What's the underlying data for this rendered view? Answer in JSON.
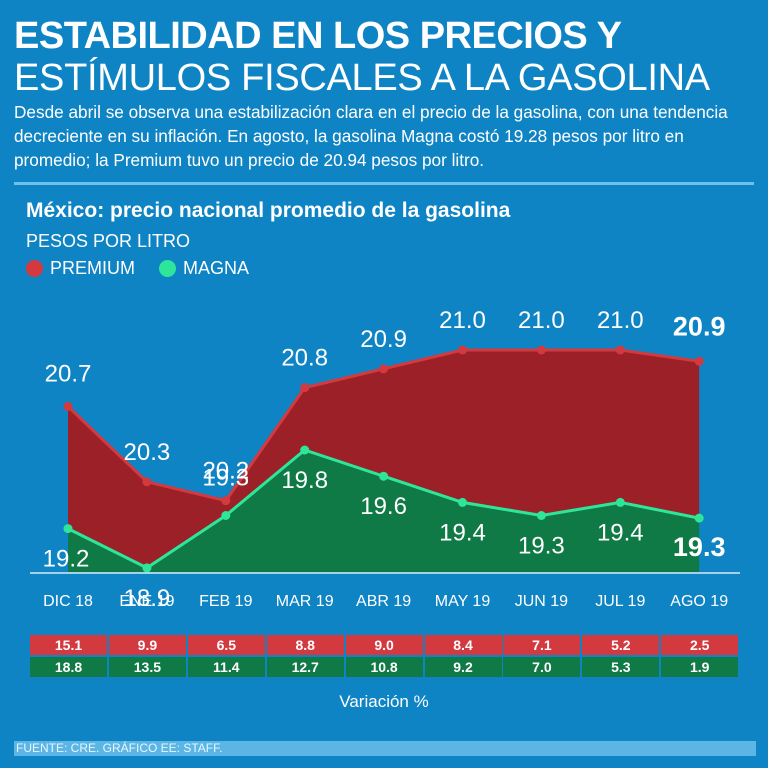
{
  "header": {
    "title_line1": "ESTABILIDAD EN LOS PRECIOS Y",
    "title_line2": "ESTÍMULOS FISCALES A LA GASOLINA",
    "intro": "Desde abril se observa una estabilización clara en el precio de la gasolina, con una tendencia decreciente en su inflación. En agosto, la gasolina Magna costó 19.28 pesos por litro en promedio; la Premium tuvo un precio de 20.94 pesos por litro."
  },
  "chart_data": {
    "type": "area",
    "title": "México: precio nacional promedio de la gasolina",
    "ylabel": "PESOS POR LITRO",
    "categories": [
      "DIC 18",
      "ENE 19",
      "FEB 19",
      "MAR 19",
      "ABR 19",
      "MAY 19",
      "JUN 19",
      "JUL 19",
      "AGO 19"
    ],
    "series": [
      {
        "name": "PREMIUM",
        "color": "#d23a3f",
        "values": [
          20.7,
          20.3,
          20.2,
          20.8,
          20.9,
          21.0,
          21.0,
          21.0,
          20.94
        ],
        "labels": [
          "20.7",
          "20.3",
          "20.2",
          "20.8",
          "20.9",
          "21.0",
          "21.0",
          "21.0",
          "20.9"
        ],
        "variacion": [
          "15.1",
          "9.9",
          "6.5",
          "8.8",
          "9.0",
          "8.4",
          "7.1",
          "5.2",
          "2.5"
        ]
      },
      {
        "name": "MAGNA",
        "color": "#2ee69a",
        "values": [
          19.2,
          18.9,
          19.3,
          19.8,
          19.6,
          19.4,
          19.3,
          19.4,
          19.28
        ],
        "labels": [
          "19.2",
          "18.9",
          "19.3",
          "19.8",
          "19.6",
          "19.4",
          "19.3",
          "19.4",
          "19.3"
        ],
        "variacion": [
          "18.8",
          "13.5",
          "11.4",
          "12.7",
          "10.8",
          "9.2",
          "7.0",
          "5.3",
          "1.9"
        ]
      }
    ],
    "legend_position": "top-left",
    "grid": false,
    "variacion_label": "Variación %"
  },
  "footer": {
    "source": "FUENTE: CRE. GRÁFICO EE: STAFF."
  }
}
